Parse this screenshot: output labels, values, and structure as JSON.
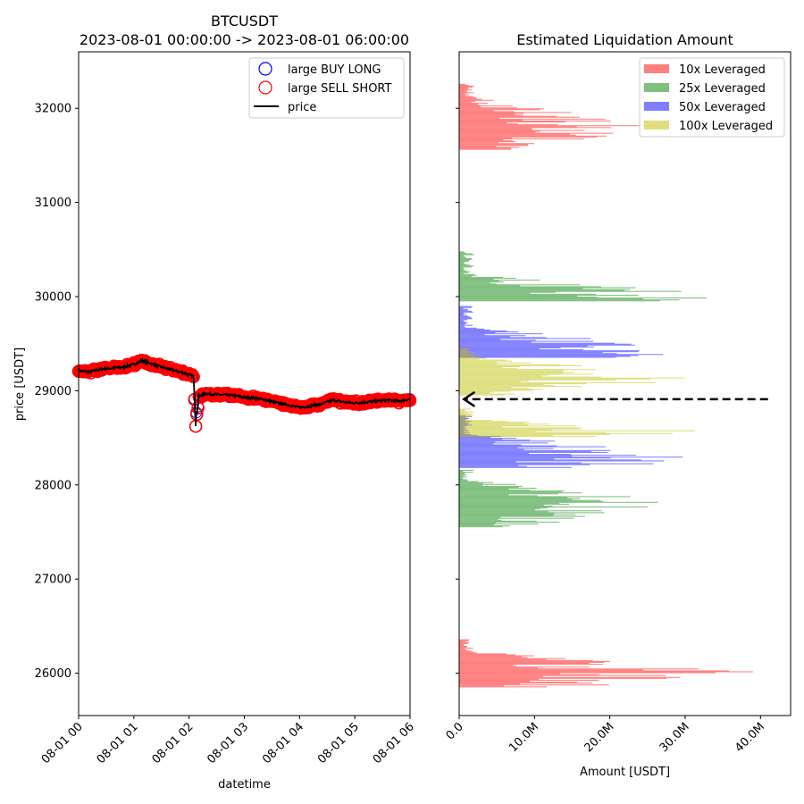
{
  "chart_data": [
    {
      "type": "line",
      "title_line1": "BTCUSDT",
      "title_line2": "2023-08-01 00:00:00 -> 2023-08-01 06:00:00",
      "xlabel": "datetime",
      "ylabel": "price [USDT]",
      "x_ticks": [
        "08-01 00",
        "08-01 01",
        "08-01 02",
        "08-01 03",
        "08-01 04",
        "08-01 05",
        "08-01 06"
      ],
      "x_range_hours": [
        0,
        6
      ],
      "y_ticks": [
        "26000",
        "27000",
        "28000",
        "29000",
        "30000",
        "31000",
        "32000"
      ],
      "y_tick_values": [
        26000,
        27000,
        28000,
        29000,
        30000,
        31000,
        32000
      ],
      "ylim": [
        25550,
        32600
      ],
      "legend": {
        "position": "top-right",
        "entries": [
          {
            "label": "large BUY LONG",
            "marker": "circle-open",
            "color": "#0000ff"
          },
          {
            "label": "large SELL SHORT",
            "marker": "circle-open",
            "color": "#ff0000"
          },
          {
            "label": "price",
            "marker": "line",
            "color": "#000000"
          }
        ]
      },
      "price_series": {
        "name": "price",
        "x_hours": [
          0,
          0.2,
          0.4,
          0.6,
          0.8,
          1.0,
          1.15,
          1.3,
          1.5,
          1.7,
          1.9,
          2.0,
          2.08,
          2.12,
          2.15,
          2.2,
          2.3,
          2.5,
          2.8,
          3.0,
          3.2,
          3.4,
          3.6,
          3.8,
          4.0,
          4.2,
          4.4,
          4.6,
          4.8,
          5.0,
          5.2,
          5.4,
          5.6,
          5.8,
          6.0
        ],
        "y": [
          29210,
          29200,
          29230,
          29240,
          29250,
          29280,
          29320,
          29290,
          29250,
          29220,
          29190,
          29170,
          29150,
          28700,
          28850,
          28950,
          28970,
          28960,
          28950,
          28930,
          28920,
          28900,
          28870,
          28850,
          28820,
          28840,
          28860,
          28900,
          28880,
          28870,
          28880,
          28890,
          28900,
          28890,
          28910
        ]
      }
    },
    {
      "type": "bar",
      "orientation": "horizontal",
      "title": "Estimated Liquidation Amount",
      "xlabel": "Amount [USDT]",
      "x_ticks": [
        "0.0",
        "10.0M",
        "20.0M",
        "30.0M",
        "40.0M"
      ],
      "x_tick_values": [
        0,
        10,
        20,
        30,
        40
      ],
      "x_unit": "M USDT",
      "xlim": [
        0,
        44
      ],
      "ylim": [
        25550,
        32600
      ],
      "legend": {
        "position": "top-right",
        "entries": [
          {
            "label": "10x Leveraged",
            "color": "#ff0000"
          },
          {
            "label": "25x Leveraged",
            "color": "#008000"
          },
          {
            "label": "50x Leveraged",
            "color": "#0000ff"
          },
          {
            "label": "100x Leveraged",
            "color": "#bfbf00"
          }
        ]
      },
      "series": [
        {
          "leverage": "10x",
          "color": "#ff0000",
          "bands": [
            [
              31560,
              32260,
              2,
              28,
              31800
            ],
            [
              25850,
              26360,
              2,
              42,
              26000
            ]
          ]
        },
        {
          "leverage": "25x",
          "color": "#008000",
          "bands": [
            [
              29950,
              30480,
              2,
              41,
              29990
            ],
            [
              27550,
              28160,
              2,
              34,
              27780
            ]
          ]
        },
        {
          "leverage": "50x",
          "color": "#0000ff",
          "bands": [
            [
              29350,
              29900,
              2,
              37,
              29420
            ],
            [
              28180,
              28740,
              2,
              36,
              28300
            ]
          ]
        },
        {
          "leverage": "100x",
          "color": "#bfbf00",
          "bands": [
            [
              28950,
              29450,
              2,
              35,
              29140
            ],
            [
              28510,
              28810,
              2,
              36,
              28560
            ]
          ]
        }
      ],
      "current_price_arrow": {
        "price": 28910,
        "from_amount": 41,
        "to_amount": 0.4
      }
    }
  ]
}
